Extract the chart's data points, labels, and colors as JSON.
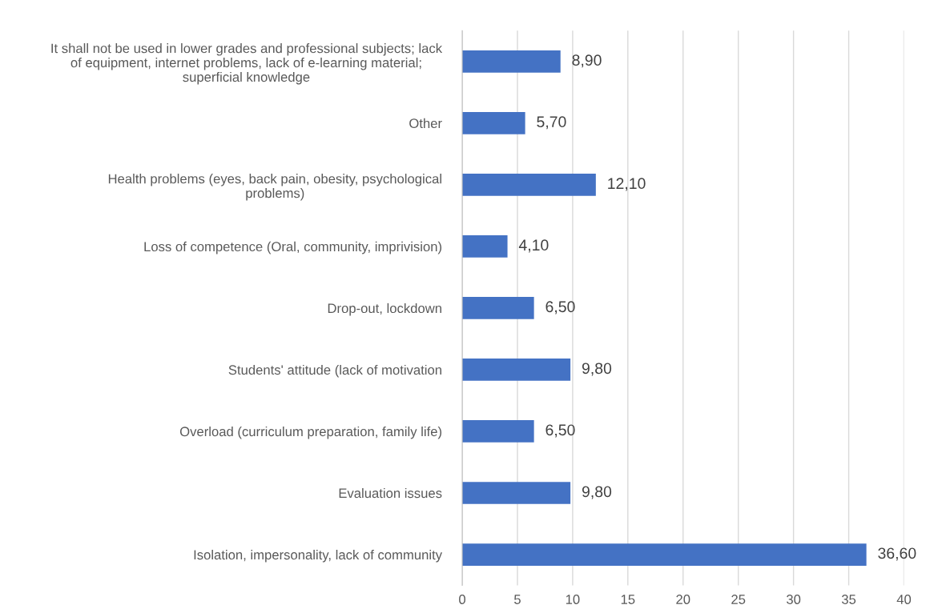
{
  "chart_data": {
    "type": "bar",
    "orientation": "horizontal",
    "categories": [
      "It shall not be used in lower grades and professional subjects; lack\nof equipment, internet problems, lack of e-learning material;\nsuperficial knowledge",
      "Other",
      "Health problems (eyes, back pain, obesity, psychological\nproblems)",
      "Loss of competence (Oral, community, imprivision)",
      "Drop-out, lockdown",
      "Students' attitude (lack of motivation",
      "Overload (curriculum preparation, family life)",
      "Evaluation issues",
      "Isolation, impersonality, lack of community"
    ],
    "values": [
      8.9,
      5.7,
      12.1,
      4.1,
      6.5,
      9.8,
      6.5,
      9.8,
      36.6
    ],
    "value_labels": [
      "8,90",
      "5,70",
      "12,10",
      "4,10",
      "6,50",
      "9,80",
      "6,50",
      "9,80",
      "36,60"
    ],
    "color": "#4472c4",
    "xlim": [
      0,
      40
    ],
    "xticks": [
      0,
      5,
      10,
      15,
      20,
      25,
      30,
      35,
      40
    ],
    "grid": "x",
    "legend": false
  }
}
